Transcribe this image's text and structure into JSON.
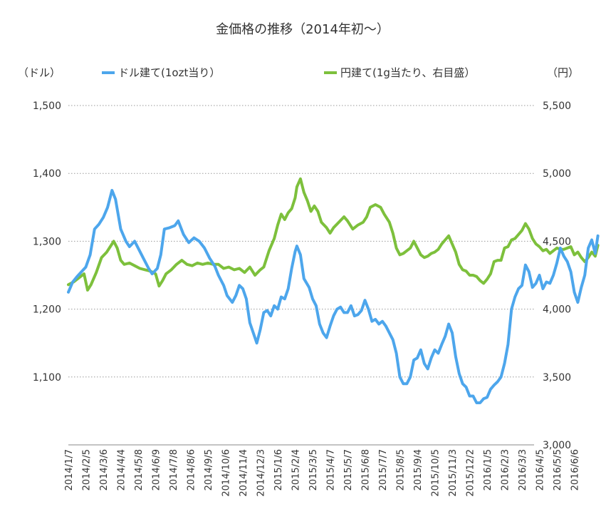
{
  "chart_data": {
    "type": "line",
    "title": "金価格の推移（2014年初〜）",
    "y_left_unit": "（ドル）",
    "y_right_unit": "（円）",
    "y_left_lim": [
      1000,
      1500
    ],
    "y_right_lim": [
      3000,
      5500
    ],
    "y_left_ticks": [
      "1,100",
      "1,200",
      "1,300",
      "1,400",
      "1,500"
    ],
    "y_right_ticks": [
      "3,000",
      "3,500",
      "4,000",
      "4,500",
      "5,000",
      "5,500"
    ],
    "grid": true,
    "legend_position": "top",
    "x_categories": [
      "2014/1/7",
      "2014/2/5",
      "2014/3/6",
      "2014/4/4",
      "2014/5/8",
      "2014/6/9",
      "2014/7/8",
      "2014/8/6",
      "2014/9/5",
      "2014/10/6",
      "2014/11/4",
      "2014/12/3",
      "2015/1/6",
      "2015/2/4",
      "2015/3/5",
      "2015/4/7",
      "2015/5/7",
      "2015/6/8",
      "2015/7/7",
      "2015/8/5",
      "2015/9/4",
      "2015/10/5",
      "2015/11/3",
      "2015/12/2",
      "2016/1/5",
      "2016/2/3",
      "2016/3/3",
      "2016/4/5",
      "2016/5/5",
      "2016/6/6"
    ],
    "series": [
      {
        "name": "ドル建て(1ozt当り）",
        "color": "#4da6ec",
        "axis": "left",
        "values": [
          [
            0,
            1225
          ],
          [
            0.25,
            1240
          ],
          [
            0.5,
            1248
          ],
          [
            0.75,
            1255
          ],
          [
            1,
            1262
          ],
          [
            1.25,
            1280
          ],
          [
            1.5,
            1318
          ],
          [
            1.75,
            1325
          ],
          [
            2,
            1335
          ],
          [
            2.25,
            1350
          ],
          [
            2.5,
            1375
          ],
          [
            2.7,
            1362
          ],
          [
            3,
            1318
          ],
          [
            3.3,
            1300
          ],
          [
            3.5,
            1292
          ],
          [
            3.8,
            1300
          ],
          [
            4,
            1290
          ],
          [
            4.3,
            1275
          ],
          [
            4.6,
            1260
          ],
          [
            4.8,
            1252
          ],
          [
            5.1,
            1260
          ],
          [
            5.3,
            1280
          ],
          [
            5.5,
            1318
          ],
          [
            5.8,
            1320
          ],
          [
            6.1,
            1323
          ],
          [
            6.3,
            1330
          ],
          [
            6.6,
            1310
          ],
          [
            6.9,
            1298
          ],
          [
            7.2,
            1305
          ],
          [
            7.5,
            1300
          ],
          [
            7.8,
            1290
          ],
          [
            8.1,
            1275
          ],
          [
            8.4,
            1263
          ],
          [
            8.6,
            1250
          ],
          [
            8.9,
            1235
          ],
          [
            9.1,
            1220
          ],
          [
            9.4,
            1210
          ],
          [
            9.6,
            1220
          ],
          [
            9.8,
            1235
          ],
          [
            10,
            1230
          ],
          [
            10.2,
            1215
          ],
          [
            10.4,
            1180
          ],
          [
            10.6,
            1165
          ],
          [
            10.8,
            1150
          ],
          [
            11,
            1170
          ],
          [
            11.2,
            1195
          ],
          [
            11.4,
            1198
          ],
          [
            11.6,
            1190
          ],
          [
            11.8,
            1205
          ],
          [
            12,
            1200
          ],
          [
            12.2,
            1218
          ],
          [
            12.4,
            1215
          ],
          [
            12.6,
            1230
          ],
          [
            12.8,
            1260
          ],
          [
            13,
            1285
          ],
          [
            13.1,
            1293
          ],
          [
            13.3,
            1280
          ],
          [
            13.5,
            1245
          ],
          [
            13.8,
            1232
          ],
          [
            14,
            1215
          ],
          [
            14.2,
            1205
          ],
          [
            14.4,
            1178
          ],
          [
            14.6,
            1165
          ],
          [
            14.8,
            1158
          ],
          [
            15,
            1175
          ],
          [
            15.2,
            1190
          ],
          [
            15.4,
            1200
          ],
          [
            15.6,
            1203
          ],
          [
            15.8,
            1195
          ],
          [
            16,
            1195
          ],
          [
            16.2,
            1205
          ],
          [
            16.4,
            1190
          ],
          [
            16.6,
            1192
          ],
          [
            16.8,
            1198
          ],
          [
            17,
            1213
          ],
          [
            17.2,
            1200
          ],
          [
            17.4,
            1182
          ],
          [
            17.6,
            1185
          ],
          [
            17.8,
            1178
          ],
          [
            18,
            1182
          ],
          [
            18.2,
            1175
          ],
          [
            18.4,
            1165
          ],
          [
            18.6,
            1155
          ],
          [
            18.8,
            1135
          ],
          [
            19,
            1100
          ],
          [
            19.2,
            1090
          ],
          [
            19.4,
            1090
          ],
          [
            19.6,
            1100
          ],
          [
            19.8,
            1125
          ],
          [
            20,
            1128
          ],
          [
            20.2,
            1140
          ],
          [
            20.4,
            1120
          ],
          [
            20.6,
            1112
          ],
          [
            20.8,
            1128
          ],
          [
            21,
            1140
          ],
          [
            21.2,
            1135
          ],
          [
            21.4,
            1148
          ],
          [
            21.6,
            1160
          ],
          [
            21.8,
            1178
          ],
          [
            22,
            1165
          ],
          [
            22.2,
            1130
          ],
          [
            22.4,
            1105
          ],
          [
            22.6,
            1090
          ],
          [
            22.8,
            1085
          ],
          [
            23,
            1072
          ],
          [
            23.2,
            1072
          ],
          [
            23.4,
            1062
          ],
          [
            23.6,
            1062
          ],
          [
            23.8,
            1068
          ],
          [
            24,
            1070
          ],
          [
            24.2,
            1082
          ],
          [
            24.4,
            1088
          ],
          [
            24.6,
            1093
          ],
          [
            24.8,
            1100
          ],
          [
            25,
            1120
          ],
          [
            25.2,
            1148
          ],
          [
            25.4,
            1200
          ],
          [
            25.6,
            1218
          ],
          [
            25.8,
            1230
          ],
          [
            26,
            1235
          ],
          [
            26.2,
            1265
          ],
          [
            26.4,
            1255
          ],
          [
            26.6,
            1232
          ],
          [
            26.8,
            1238
          ],
          [
            27,
            1250
          ],
          [
            27.2,
            1230
          ],
          [
            27.4,
            1240
          ],
          [
            27.6,
            1238
          ],
          [
            27.8,
            1250
          ],
          [
            28,
            1268
          ],
          [
            28.2,
            1290
          ],
          [
            28.4,
            1278
          ],
          [
            28.6,
            1270
          ],
          [
            28.8,
            1255
          ],
          [
            29,
            1225
          ],
          [
            29.2,
            1210
          ],
          [
            29.4,
            1232
          ],
          [
            29.6,
            1250
          ],
          [
            29.8,
            1290
          ],
          [
            30,
            1302
          ],
          [
            30.2,
            1282
          ],
          [
            30.35,
            1308
          ]
        ]
      },
      {
        "name": "円建て(1g当たり、右目盛）",
        "color": "#7dc03c",
        "axis": "right",
        "values": [
          [
            0,
            4180
          ],
          [
            0.3,
            4200
          ],
          [
            0.6,
            4230
          ],
          [
            0.9,
            4260
          ],
          [
            1.1,
            4140
          ],
          [
            1.3,
            4180
          ],
          [
            1.6,
            4270
          ],
          [
            1.9,
            4380
          ],
          [
            2.2,
            4420
          ],
          [
            2.4,
            4460
          ],
          [
            2.6,
            4500
          ],
          [
            2.8,
            4450
          ],
          [
            3,
            4360
          ],
          [
            3.2,
            4330
          ],
          [
            3.5,
            4340
          ],
          [
            3.8,
            4320
          ],
          [
            4.1,
            4300
          ],
          [
            4.4,
            4290
          ],
          [
            4.7,
            4280
          ],
          [
            5,
            4260
          ],
          [
            5.2,
            4170
          ],
          [
            5.4,
            4210
          ],
          [
            5.6,
            4260
          ],
          [
            5.9,
            4290
          ],
          [
            6.2,
            4330
          ],
          [
            6.5,
            4360
          ],
          [
            6.8,
            4330
          ],
          [
            7.1,
            4320
          ],
          [
            7.4,
            4340
          ],
          [
            7.7,
            4330
          ],
          [
            8,
            4340
          ],
          [
            8.3,
            4330
          ],
          [
            8.6,
            4330
          ],
          [
            8.9,
            4300
          ],
          [
            9.2,
            4310
          ],
          [
            9.5,
            4290
          ],
          [
            9.8,
            4300
          ],
          [
            10.1,
            4270
          ],
          [
            10.4,
            4310
          ],
          [
            10.7,
            4250
          ],
          [
            11,
            4290
          ],
          [
            11.2,
            4310
          ],
          [
            11.5,
            4430
          ],
          [
            11.8,
            4520
          ],
          [
            12,
            4620
          ],
          [
            12.2,
            4700
          ],
          [
            12.4,
            4660
          ],
          [
            12.6,
            4710
          ],
          [
            12.8,
            4740
          ],
          [
            13,
            4820
          ],
          [
            13.1,
            4900
          ],
          [
            13.3,
            4960
          ],
          [
            13.5,
            4860
          ],
          [
            13.7,
            4800
          ],
          [
            13.9,
            4720
          ],
          [
            14.1,
            4760
          ],
          [
            14.3,
            4720
          ],
          [
            14.5,
            4640
          ],
          [
            14.8,
            4600
          ],
          [
            15,
            4560
          ],
          [
            15.2,
            4600
          ],
          [
            15.5,
            4640
          ],
          [
            15.8,
            4680
          ],
          [
            16,
            4650
          ],
          [
            16.3,
            4590
          ],
          [
            16.6,
            4620
          ],
          [
            16.9,
            4640
          ],
          [
            17.1,
            4680
          ],
          [
            17.3,
            4750
          ],
          [
            17.6,
            4770
          ],
          [
            17.9,
            4750
          ],
          [
            18.1,
            4700
          ],
          [
            18.4,
            4640
          ],
          [
            18.6,
            4560
          ],
          [
            18.8,
            4450
          ],
          [
            19,
            4400
          ],
          [
            19.2,
            4410
          ],
          [
            19.4,
            4430
          ],
          [
            19.6,
            4450
          ],
          [
            19.8,
            4500
          ],
          [
            20,
            4450
          ],
          [
            20.2,
            4400
          ],
          [
            20.4,
            4380
          ],
          [
            20.6,
            4390
          ],
          [
            20.8,
            4410
          ],
          [
            21,
            4420
          ],
          [
            21.2,
            4440
          ],
          [
            21.4,
            4480
          ],
          [
            21.6,
            4510
          ],
          [
            21.8,
            4540
          ],
          [
            22,
            4480
          ],
          [
            22.2,
            4420
          ],
          [
            22.4,
            4330
          ],
          [
            22.6,
            4290
          ],
          [
            22.8,
            4280
          ],
          [
            23,
            4250
          ],
          [
            23.2,
            4250
          ],
          [
            23.4,
            4240
          ],
          [
            23.6,
            4210
          ],
          [
            23.8,
            4190
          ],
          [
            24,
            4220
          ],
          [
            24.2,
            4260
          ],
          [
            24.4,
            4350
          ],
          [
            24.6,
            4360
          ],
          [
            24.8,
            4360
          ],
          [
            25,
            4450
          ],
          [
            25.2,
            4460
          ],
          [
            25.4,
            4510
          ],
          [
            25.6,
            4520
          ],
          [
            25.8,
            4550
          ],
          [
            26,
            4580
          ],
          [
            26.2,
            4630
          ],
          [
            26.4,
            4590
          ],
          [
            26.6,
            4520
          ],
          [
            26.8,
            4480
          ],
          [
            27,
            4460
          ],
          [
            27.2,
            4430
          ],
          [
            27.4,
            4440
          ],
          [
            27.6,
            4410
          ],
          [
            27.8,
            4430
          ],
          [
            28,
            4450
          ],
          [
            28.2,
            4440
          ],
          [
            28.4,
            4440
          ],
          [
            28.6,
            4450
          ],
          [
            28.8,
            4460
          ],
          [
            29,
            4400
          ],
          [
            29.2,
            4420
          ],
          [
            29.4,
            4380
          ],
          [
            29.6,
            4350
          ],
          [
            29.8,
            4380
          ],
          [
            30,
            4420
          ],
          [
            30.2,
            4390
          ],
          [
            30.35,
            4470
          ]
        ]
      }
    ]
  }
}
